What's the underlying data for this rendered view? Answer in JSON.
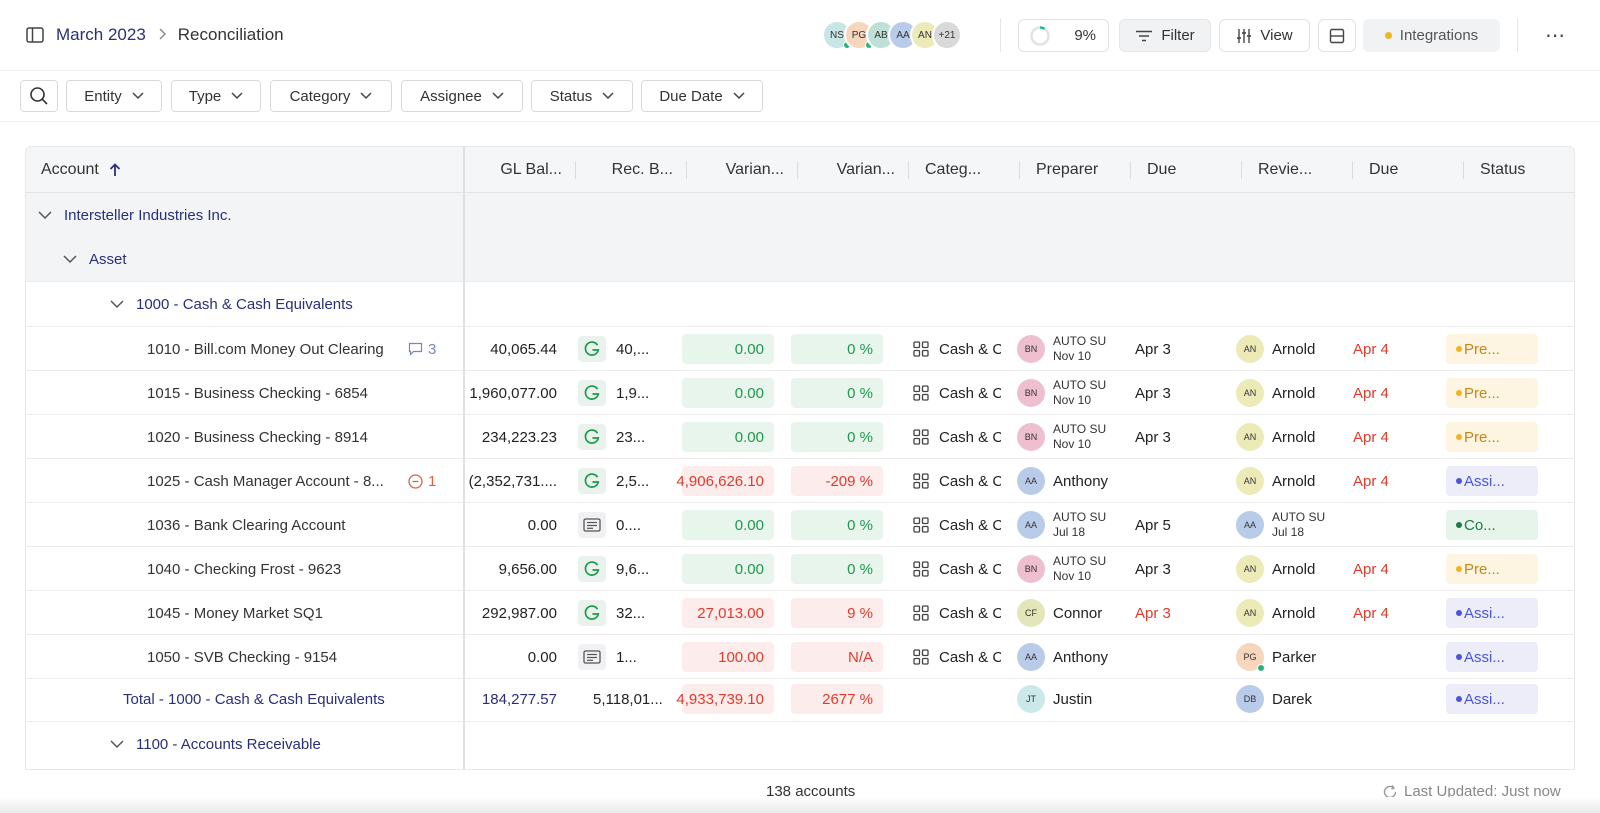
{
  "breadcrumb": {
    "root": "March 2023",
    "current": "Reconciliation"
  },
  "header": {
    "avatars": [
      {
        "initials": "NS",
        "color": "#c9e6e6",
        "online": true
      },
      {
        "initials": "PG",
        "color": "#f6d6bd",
        "online": true
      },
      {
        "initials": "AB",
        "color": "#bfe0d6",
        "online": false
      },
      {
        "initials": "AA",
        "color": "#b8cbe8",
        "online": false
      },
      {
        "initials": "AN",
        "color": "#ecebb8",
        "online": false
      },
      {
        "initials": "+21",
        "color": "#d9d9d9",
        "online": false
      }
    ],
    "progress_label": "9%",
    "progress_value": 0.09,
    "filter_label": "Filter",
    "view_label": "View",
    "integrations_label": "Integrations",
    "more_label": "⋯"
  },
  "filters": [
    "Entity",
    "Type",
    "Category",
    "Assignee",
    "Status",
    "Due Date"
  ],
  "columns": {
    "account": "Account",
    "gl_balance": "GL Bal...",
    "rec_balance": "Rec. B...",
    "variance": "Varian...",
    "variance_pct": "Varian...",
    "category": "Categ...",
    "preparer": "Preparer",
    "due1": "Due",
    "reviewer": "Revie...",
    "due2": "Due",
    "status": "Status"
  },
  "groups": {
    "entity": "Intersteller Industries Inc.",
    "type": "Asset",
    "account_group": "1000 - Cash & Cash Equivalents",
    "next_group": "1100 - Accounts Receivable"
  },
  "rows": [
    {
      "account": "1010 - Bill.com Money Out Clearing",
      "badge": "3",
      "badge_type": "comment",
      "gl": "40,065.44",
      "rec_icon": "g",
      "rec": "40,...",
      "var": "0.00",
      "var_pct": "0 %",
      "var_tone": "green",
      "category": "Cash & C",
      "preparer": {
        "initials": "BN",
        "color": "#eebfcf",
        "line1": "AUTO SU",
        "line2": "Nov 10",
        "stack": true
      },
      "due1": "Apr 3",
      "due1_red": false,
      "reviewer": {
        "initials": "AN",
        "color": "#ecebb8",
        "name": "Arnold"
      },
      "due2": "Apr 4",
      "status": "Pre...",
      "status_type": "pre"
    },
    {
      "account": "1015 - Business Checking - 6854",
      "badge": "",
      "badge_type": "",
      "gl": "1,960,077.00",
      "rec_icon": "g",
      "rec": "1,9...",
      "var": "0.00",
      "var_pct": "0 %",
      "var_tone": "green",
      "category": "Cash & C",
      "preparer": {
        "initials": "BN",
        "color": "#eebfcf",
        "line1": "AUTO SU",
        "line2": "Nov 10",
        "stack": true
      },
      "due1": "Apr 3",
      "due1_red": false,
      "reviewer": {
        "initials": "AN",
        "color": "#ecebb8",
        "name": "Arnold"
      },
      "due2": "Apr 4",
      "status": "Pre...",
      "status_type": "pre"
    },
    {
      "account": "1020 - Business Checking - 8914",
      "badge": "",
      "badge_type": "",
      "gl": "234,223.23",
      "rec_icon": "g",
      "rec": "23...",
      "var": "0.00",
      "var_pct": "0 %",
      "var_tone": "green",
      "category": "Cash & C",
      "preparer": {
        "initials": "BN",
        "color": "#eebfcf",
        "line1": "AUTO SU",
        "line2": "Nov 10",
        "stack": true
      },
      "due1": "Apr 3",
      "due1_red": false,
      "reviewer": {
        "initials": "AN",
        "color": "#ecebb8",
        "name": "Arnold"
      },
      "due2": "Apr 4",
      "status": "Pre...",
      "status_type": "pre"
    },
    {
      "account": "1025 - Cash Manager Account - 8...",
      "badge": "1",
      "badge_type": "minus",
      "gl": "(2,352,731....",
      "rec_icon": "g",
      "rec": "2,5...",
      "var": "4,906,626.10",
      "var_pct": "-209 %",
      "var_tone": "red",
      "category": "Cash & C",
      "preparer": {
        "initials": "AA",
        "color": "#b8cbe8",
        "name": "Anthony",
        "stack": false
      },
      "due1": "",
      "due1_red": false,
      "reviewer": {
        "initials": "AN",
        "color": "#ecebb8",
        "name": "Arnold"
      },
      "due2": "Apr 4",
      "status": "Assi...",
      "status_type": "assi"
    },
    {
      "account": "1036 - Bank Clearing Account",
      "badge": "",
      "badge_type": "",
      "gl": "0.00",
      "rec_icon": "doc",
      "rec": "0....",
      "var": "0.00",
      "var_pct": "0 %",
      "var_tone": "green",
      "category": "Cash & C",
      "preparer": {
        "initials": "AA",
        "color": "#b8cbe8",
        "line1": "AUTO SU",
        "line2": "Jul 18",
        "stack": true
      },
      "due1": "Apr 5",
      "due1_red": false,
      "reviewer": {
        "initials": "AA",
        "color": "#b8cbe8",
        "line1": "AUTO SU",
        "line2": "Jul 18",
        "stack": true
      },
      "due2": "",
      "status": "Co...",
      "status_type": "co"
    },
    {
      "account": "1040 - Checking Frost - 9623",
      "badge": "",
      "badge_type": "",
      "gl": "9,656.00",
      "rec_icon": "g",
      "rec": "9,6...",
      "var": "0.00",
      "var_pct": "0 %",
      "var_tone": "green",
      "category": "Cash & C",
      "preparer": {
        "initials": "BN",
        "color": "#eebfcf",
        "line1": "AUTO SU",
        "line2": "Nov 10",
        "stack": true
      },
      "due1": "Apr 3",
      "due1_red": false,
      "reviewer": {
        "initials": "AN",
        "color": "#ecebb8",
        "name": "Arnold"
      },
      "due2": "Apr 4",
      "status": "Pre...",
      "status_type": "pre"
    },
    {
      "account": "1045 - Money Market SQ1",
      "badge": "",
      "badge_type": "",
      "gl": "292,987.00",
      "rec_icon": "g",
      "rec": "32...",
      "var": "27,013.00",
      "var_pct": "9 %",
      "var_tone": "red",
      "category": "Cash & C",
      "preparer": {
        "initials": "CF",
        "color": "#e3e6b8",
        "name": "Connor",
        "stack": false
      },
      "due1": "Apr 3",
      "due1_red": true,
      "reviewer": {
        "initials": "AN",
        "color": "#ecebb8",
        "name": "Arnold"
      },
      "due2": "Apr 4",
      "status": "Assi...",
      "status_type": "assi"
    },
    {
      "account": "1050 - SVB Checking - 9154",
      "badge": "",
      "badge_type": "",
      "gl": "0.00",
      "rec_icon": "doc",
      "rec": "1...",
      "var": "100.00",
      "var_pct": "N/A",
      "var_tone": "red",
      "category": "Cash & C",
      "preparer": {
        "initials": "AA",
        "color": "#b8cbe8",
        "name": "Anthony",
        "stack": false
      },
      "due1": "",
      "due1_red": false,
      "reviewer": {
        "initials": "PG",
        "color": "#f6d6bd",
        "name": "Parker",
        "online": true
      },
      "due2": "",
      "status": "Assi...",
      "status_type": "assi"
    }
  ],
  "total_row": {
    "account": "Total - 1000 - Cash & Cash Equivalents",
    "gl": "184,277.57",
    "rec": "5,118,01...",
    "var": "4,933,739.10",
    "var_pct": "2677 %",
    "preparer": {
      "initials": "JT",
      "color": "#cde8e8",
      "name": "Justin"
    },
    "reviewer": {
      "initials": "DB",
      "color": "#b8cbe8",
      "name": "Darek"
    },
    "status": "Assi..."
  },
  "footer": {
    "count": "138 accounts",
    "updated": "Last Updated: Just now"
  },
  "colors": {
    "navy": "#2b2f7a",
    "green": "#1e9a4c",
    "red": "#e03b2a",
    "pending": "#f2b321",
    "assigned": "#4a56d8",
    "complete": "#1c7a46"
  }
}
